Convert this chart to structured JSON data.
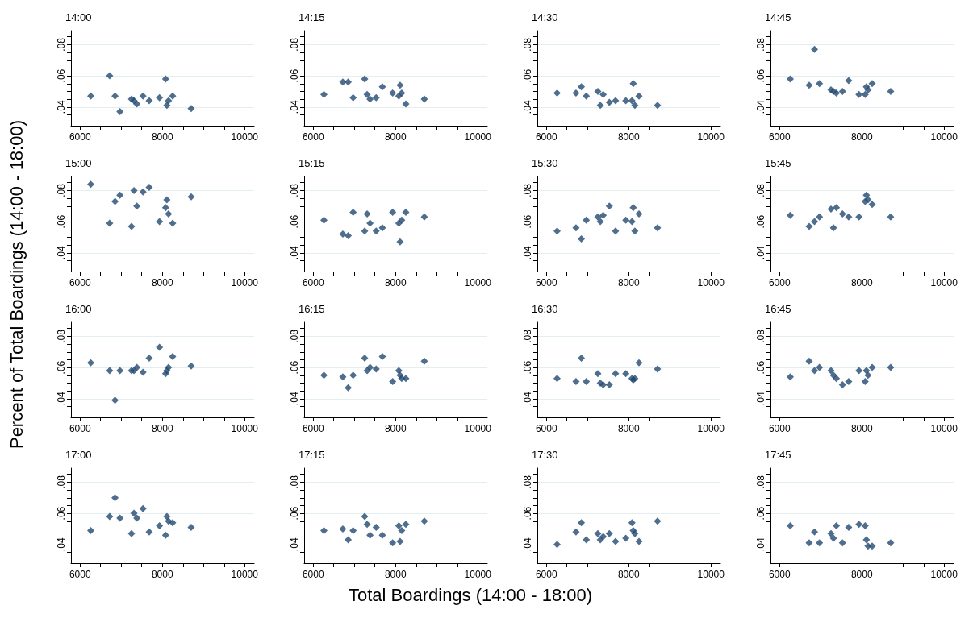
{
  "chart_data": [
    {
      "type": "scatter",
      "title": "14:00",
      "marker": "diamond",
      "grid": "y",
      "xlim": [
        5780,
        10230
      ],
      "ylim": [
        0.028,
        0.089
      ],
      "xticks": [
        6000,
        {
          "value": 6500,
          "label": null
        },
        {
          "value": 7000,
          "label": null
        },
        {
          "value": 7500,
          "label": null
        },
        8000,
        {
          "value": 8500,
          "label": null
        },
        {
          "value": 9000,
          "label": null
        },
        {
          "value": 9500,
          "label": null
        },
        10000
      ],
      "yticks": [
        {
          "value": 0.035,
          "label": null
        },
        {
          "value": 0.04,
          "label": ".04"
        },
        {
          "value": 0.045,
          "label": null
        },
        {
          "value": 0.05,
          "label": null
        },
        {
          "value": 0.055,
          "label": null
        },
        {
          "value": 0.06,
          "label": ".06"
        },
        {
          "value": 0.065,
          "label": null
        },
        {
          "value": 0.07,
          "label": null
        },
        {
          "value": 0.075,
          "label": null
        },
        {
          "value": 0.08,
          "label": ".08"
        },
        {
          "value": 0.085,
          "label": null
        }
      ],
      "x": [
        6260,
        6720,
        6850,
        6970,
        7250,
        7310,
        7380,
        7530,
        7680,
        7930,
        8080,
        8110,
        8150,
        8250,
        8700
      ],
      "series": [
        {
          "color": "#234a72",
          "values": [
            0.047,
            0.06,
            0.047,
            0.037,
            0.045,
            0.044,
            0.042,
            0.047,
            0.044,
            0.046,
            0.058,
            0.041,
            0.044,
            0.047,
            0.039
          ]
        }
      ]
    },
    {
      "type": "scatter",
      "title": "14:15",
      "marker": "diamond",
      "grid": "y",
      "xlim": [
        5780,
        10230
      ],
      "ylim": [
        0.028,
        0.089
      ],
      "xticks": [
        6000,
        {
          "value": 6500,
          "label": null
        },
        {
          "value": 7000,
          "label": null
        },
        {
          "value": 7500,
          "label": null
        },
        8000,
        {
          "value": 8500,
          "label": null
        },
        {
          "value": 9000,
          "label": null
        },
        {
          "value": 9500,
          "label": null
        },
        10000
      ],
      "yticks": [
        {
          "value": 0.035,
          "label": null
        },
        {
          "value": 0.04,
          "label": ".04"
        },
        {
          "value": 0.045,
          "label": null
        },
        {
          "value": 0.05,
          "label": null
        },
        {
          "value": 0.055,
          "label": null
        },
        {
          "value": 0.06,
          "label": ".06"
        },
        {
          "value": 0.065,
          "label": null
        },
        {
          "value": 0.07,
          "label": null
        },
        {
          "value": 0.075,
          "label": null
        },
        {
          "value": 0.08,
          "label": ".08"
        },
        {
          "value": 0.085,
          "label": null
        }
      ],
      "x": [
        6260,
        6720,
        6850,
        6970,
        7250,
        7310,
        7380,
        7530,
        7680,
        7930,
        8080,
        8110,
        8150,
        8250,
        8700
      ],
      "series": [
        {
          "color": "#234a72",
          "values": [
            0.048,
            0.056,
            0.056,
            0.046,
            0.058,
            0.048,
            0.045,
            0.046,
            0.053,
            0.049,
            0.047,
            0.054,
            0.049,
            0.042,
            0.045
          ]
        }
      ]
    },
    {
      "type": "scatter",
      "title": "14:30",
      "marker": "diamond",
      "grid": "y",
      "xlim": [
        5780,
        10230
      ],
      "ylim": [
        0.028,
        0.089
      ],
      "xticks": [
        6000,
        {
          "value": 6500,
          "label": null
        },
        {
          "value": 7000,
          "label": null
        },
        {
          "value": 7500,
          "label": null
        },
        8000,
        {
          "value": 8500,
          "label": null
        },
        {
          "value": 9000,
          "label": null
        },
        {
          "value": 9500,
          "label": null
        },
        10000
      ],
      "yticks": [
        {
          "value": 0.035,
          "label": null
        },
        {
          "value": 0.04,
          "label": ".04"
        },
        {
          "value": 0.045,
          "label": null
        },
        {
          "value": 0.05,
          "label": null
        },
        {
          "value": 0.055,
          "label": null
        },
        {
          "value": 0.06,
          "label": ".06"
        },
        {
          "value": 0.065,
          "label": null
        },
        {
          "value": 0.07,
          "label": null
        },
        {
          "value": 0.075,
          "label": null
        },
        {
          "value": 0.08,
          "label": ".08"
        },
        {
          "value": 0.085,
          "label": null
        }
      ],
      "x": [
        6260,
        6720,
        6850,
        6970,
        7250,
        7310,
        7380,
        7530,
        7680,
        7930,
        8080,
        8110,
        8150,
        8250,
        8700
      ],
      "series": [
        {
          "color": "#234a72",
          "values": [
            0.049,
            0.049,
            0.053,
            0.047,
            0.05,
            0.041,
            0.048,
            0.043,
            0.044,
            0.044,
            0.044,
            0.055,
            0.041,
            0.047,
            0.041
          ]
        }
      ]
    },
    {
      "type": "scatter",
      "title": "14:45",
      "marker": "diamond",
      "grid": "y",
      "xlim": [
        5780,
        10230
      ],
      "ylim": [
        0.028,
        0.089
      ],
      "xticks": [
        6000,
        {
          "value": 6500,
          "label": null
        },
        {
          "value": 7000,
          "label": null
        },
        {
          "value": 7500,
          "label": null
        },
        8000,
        {
          "value": 8500,
          "label": null
        },
        {
          "value": 9000,
          "label": null
        },
        {
          "value": 9500,
          "label": null
        },
        10000
      ],
      "yticks": [
        {
          "value": 0.035,
          "label": null
        },
        {
          "value": 0.04,
          "label": ".04"
        },
        {
          "value": 0.045,
          "label": null
        },
        {
          "value": 0.05,
          "label": null
        },
        {
          "value": 0.055,
          "label": null
        },
        {
          "value": 0.06,
          "label": ".06"
        },
        {
          "value": 0.065,
          "label": null
        },
        {
          "value": 0.07,
          "label": null
        },
        {
          "value": 0.075,
          "label": null
        },
        {
          "value": 0.08,
          "label": ".08"
        },
        {
          "value": 0.085,
          "label": null
        }
      ],
      "x": [
        6260,
        6720,
        6850,
        6970,
        7250,
        7310,
        7380,
        7530,
        7680,
        7930,
        8080,
        8110,
        8150,
        8250,
        8700
      ],
      "series": [
        {
          "color": "#234a72",
          "values": [
            0.058,
            0.054,
            0.077,
            0.055,
            0.051,
            0.05,
            0.049,
            0.05,
            0.057,
            0.048,
            0.048,
            0.053,
            0.051,
            0.055,
            0.05
          ]
        }
      ]
    },
    {
      "type": "scatter",
      "title": "15:00",
      "ylabel": "Percent of Total Boardings (14:00 - 18:00)",
      "marker": "diamond",
      "grid": "y",
      "xlim": [
        5780,
        10230
      ],
      "ylim": [
        0.028,
        0.089
      ],
      "xticks": [
        6000,
        {
          "value": 6500,
          "label": null
        },
        {
          "value": 7000,
          "label": null
        },
        {
          "value": 7500,
          "label": null
        },
        8000,
        {
          "value": 8500,
          "label": null
        },
        {
          "value": 9000,
          "label": null
        },
        {
          "value": 9500,
          "label": null
        },
        10000
      ],
      "yticks": [
        {
          "value": 0.035,
          "label": null
        },
        {
          "value": 0.04,
          "label": ".04"
        },
        {
          "value": 0.045,
          "label": null
        },
        {
          "value": 0.05,
          "label": null
        },
        {
          "value": 0.055,
          "label": null
        },
        {
          "value": 0.06,
          "label": ".06"
        },
        {
          "value": 0.065,
          "label": null
        },
        {
          "value": 0.07,
          "label": null
        },
        {
          "value": 0.075,
          "label": null
        },
        {
          "value": 0.08,
          "label": ".08"
        },
        {
          "value": 0.085,
          "label": null
        }
      ],
      "x": [
        6260,
        6720,
        6850,
        6970,
        7250,
        7310,
        7380,
        7530,
        7680,
        7930,
        8080,
        8110,
        8150,
        8250,
        8700
      ],
      "series": [
        {
          "color": "#234a72",
          "values": [
            0.084,
            0.059,
            0.073,
            0.077,
            0.057,
            0.08,
            0.07,
            0.079,
            0.082,
            0.06,
            0.069,
            0.074,
            0.065,
            0.059,
            0.076
          ]
        }
      ]
    },
    {
      "type": "scatter",
      "title": "15:15",
      "marker": "diamond",
      "grid": "y",
      "xlim": [
        5780,
        10230
      ],
      "ylim": [
        0.028,
        0.089
      ],
      "xticks": [
        6000,
        {
          "value": 6500,
          "label": null
        },
        {
          "value": 7000,
          "label": null
        },
        {
          "value": 7500,
          "label": null
        },
        8000,
        {
          "value": 8500,
          "label": null
        },
        {
          "value": 9000,
          "label": null
        },
        {
          "value": 9500,
          "label": null
        },
        10000
      ],
      "yticks": [
        {
          "value": 0.035,
          "label": null
        },
        {
          "value": 0.04,
          "label": ".04"
        },
        {
          "value": 0.045,
          "label": null
        },
        {
          "value": 0.05,
          "label": null
        },
        {
          "value": 0.055,
          "label": null
        },
        {
          "value": 0.06,
          "label": ".06"
        },
        {
          "value": 0.065,
          "label": null
        },
        {
          "value": 0.07,
          "label": null
        },
        {
          "value": 0.075,
          "label": null
        },
        {
          "value": 0.08,
          "label": ".08"
        },
        {
          "value": 0.085,
          "label": null
        }
      ],
      "x": [
        6260,
        6720,
        6850,
        6970,
        7250,
        7310,
        7380,
        7530,
        7680,
        7930,
        8080,
        8110,
        8150,
        8250,
        8700
      ],
      "series": [
        {
          "color": "#234a72",
          "values": [
            0.061,
            0.052,
            0.051,
            0.066,
            0.054,
            0.065,
            0.059,
            0.054,
            0.056,
            0.066,
            0.059,
            0.047,
            0.061,
            0.066,
            0.063
          ]
        }
      ]
    },
    {
      "type": "scatter",
      "title": "15:30",
      "marker": "diamond",
      "grid": "y",
      "xlim": [
        5780,
        10230
      ],
      "ylim": [
        0.028,
        0.089
      ],
      "xticks": [
        6000,
        {
          "value": 6500,
          "label": null
        },
        {
          "value": 7000,
          "label": null
        },
        {
          "value": 7500,
          "label": null
        },
        8000,
        {
          "value": 8500,
          "label": null
        },
        {
          "value": 9000,
          "label": null
        },
        {
          "value": 9500,
          "label": null
        },
        10000
      ],
      "yticks": [
        {
          "value": 0.035,
          "label": null
        },
        {
          "value": 0.04,
          "label": ".04"
        },
        {
          "value": 0.045,
          "label": null
        },
        {
          "value": 0.05,
          "label": null
        },
        {
          "value": 0.055,
          "label": null
        },
        {
          "value": 0.06,
          "label": ".06"
        },
        {
          "value": 0.065,
          "label": null
        },
        {
          "value": 0.07,
          "label": null
        },
        {
          "value": 0.075,
          "label": null
        },
        {
          "value": 0.08,
          "label": ".08"
        },
        {
          "value": 0.085,
          "label": null
        }
      ],
      "x": [
        6260,
        6720,
        6850,
        6970,
        7250,
        7310,
        7380,
        7530,
        7680,
        7930,
        8080,
        8110,
        8150,
        8250,
        8700
      ],
      "series": [
        {
          "color": "#234a72",
          "values": [
            0.054,
            0.056,
            0.049,
            0.061,
            0.063,
            0.06,
            0.064,
            0.07,
            0.054,
            0.061,
            0.06,
            0.069,
            0.054,
            0.065,
            0.056
          ]
        }
      ]
    },
    {
      "type": "scatter",
      "title": "15:45",
      "marker": "diamond",
      "grid": "y",
      "xlim": [
        5780,
        10230
      ],
      "ylim": [
        0.028,
        0.089
      ],
      "xticks": [
        6000,
        {
          "value": 6500,
          "label": null
        },
        {
          "value": 7000,
          "label": null
        },
        {
          "value": 7500,
          "label": null
        },
        8000,
        {
          "value": 8500,
          "label": null
        },
        {
          "value": 9000,
          "label": null
        },
        {
          "value": 9500,
          "label": null
        },
        10000
      ],
      "yticks": [
        {
          "value": 0.035,
          "label": null
        },
        {
          "value": 0.04,
          "label": ".04"
        },
        {
          "value": 0.045,
          "label": null
        },
        {
          "value": 0.05,
          "label": null
        },
        {
          "value": 0.055,
          "label": null
        },
        {
          "value": 0.06,
          "label": ".06"
        },
        {
          "value": 0.065,
          "label": null
        },
        {
          "value": 0.07,
          "label": null
        },
        {
          "value": 0.075,
          "label": null
        },
        {
          "value": 0.08,
          "label": ".08"
        },
        {
          "value": 0.085,
          "label": null
        }
      ],
      "x": [
        6260,
        6720,
        6850,
        6970,
        7250,
        7310,
        7380,
        7530,
        7680,
        7930,
        8080,
        8110,
        8150,
        8250,
        8700
      ],
      "series": [
        {
          "color": "#234a72",
          "values": [
            0.064,
            0.057,
            0.06,
            0.063,
            0.068,
            0.056,
            0.069,
            0.065,
            0.063,
            0.063,
            0.073,
            0.077,
            0.074,
            0.071,
            0.063
          ]
        }
      ]
    },
    {
      "type": "scatter",
      "title": "16:00",
      "marker": "diamond",
      "grid": "y",
      "xlim": [
        5780,
        10230
      ],
      "ylim": [
        0.028,
        0.089
      ],
      "xticks": [
        6000,
        {
          "value": 6500,
          "label": null
        },
        {
          "value": 7000,
          "label": null
        },
        {
          "value": 7500,
          "label": null
        },
        8000,
        {
          "value": 8500,
          "label": null
        },
        {
          "value": 9000,
          "label": null
        },
        {
          "value": 9500,
          "label": null
        },
        10000
      ],
      "yticks": [
        {
          "value": 0.035,
          "label": null
        },
        {
          "value": 0.04,
          "label": ".04"
        },
        {
          "value": 0.045,
          "label": null
        },
        {
          "value": 0.05,
          "label": null
        },
        {
          "value": 0.055,
          "label": null
        },
        {
          "value": 0.06,
          "label": ".06"
        },
        {
          "value": 0.065,
          "label": null
        },
        {
          "value": 0.07,
          "label": null
        },
        {
          "value": 0.075,
          "label": null
        },
        {
          "value": 0.08,
          "label": ".08"
        },
        {
          "value": 0.085,
          "label": null
        }
      ],
      "x": [
        6260,
        6720,
        6850,
        6970,
        7250,
        7310,
        7380,
        7530,
        7680,
        7930,
        8080,
        8110,
        8150,
        8250,
        8700
      ],
      "series": [
        {
          "color": "#234a72",
          "values": [
            0.063,
            0.058,
            0.039,
            0.058,
            0.058,
            0.058,
            0.06,
            0.057,
            0.066,
            0.073,
            0.056,
            0.058,
            0.06,
            0.067,
            0.061
          ]
        }
      ]
    },
    {
      "type": "scatter",
      "title": "16:15",
      "marker": "diamond",
      "grid": "y",
      "xlim": [
        5780,
        10230
      ],
      "ylim": [
        0.028,
        0.089
      ],
      "xticks": [
        6000,
        {
          "value": 6500,
          "label": null
        },
        {
          "value": 7000,
          "label": null
        },
        {
          "value": 7500,
          "label": null
        },
        8000,
        {
          "value": 8500,
          "label": null
        },
        {
          "value": 9000,
          "label": null
        },
        {
          "value": 9500,
          "label": null
        },
        10000
      ],
      "yticks": [
        {
          "value": 0.035,
          "label": null
        },
        {
          "value": 0.04,
          "label": ".04"
        },
        {
          "value": 0.045,
          "label": null
        },
        {
          "value": 0.05,
          "label": null
        },
        {
          "value": 0.055,
          "label": null
        },
        {
          "value": 0.06,
          "label": ".06"
        },
        {
          "value": 0.065,
          "label": null
        },
        {
          "value": 0.07,
          "label": null
        },
        {
          "value": 0.075,
          "label": null
        },
        {
          "value": 0.08,
          "label": ".08"
        },
        {
          "value": 0.085,
          "label": null
        }
      ],
      "x": [
        6260,
        6720,
        6850,
        6970,
        7250,
        7310,
        7380,
        7530,
        7680,
        7930,
        8080,
        8110,
        8150,
        8250,
        8700
      ],
      "series": [
        {
          "color": "#234a72",
          "values": [
            0.055,
            0.054,
            0.047,
            0.055,
            0.066,
            0.058,
            0.06,
            0.059,
            0.067,
            0.051,
            0.058,
            0.055,
            0.053,
            0.053,
            0.064
          ]
        }
      ]
    },
    {
      "type": "scatter",
      "title": "16:30",
      "marker": "diamond",
      "grid": "y",
      "xlim": [
        5780,
        10230
      ],
      "ylim": [
        0.028,
        0.089
      ],
      "xticks": [
        6000,
        {
          "value": 6500,
          "label": null
        },
        {
          "value": 7000,
          "label": null
        },
        {
          "value": 7500,
          "label": null
        },
        8000,
        {
          "value": 8500,
          "label": null
        },
        {
          "value": 9000,
          "label": null
        },
        {
          "value": 9500,
          "label": null
        },
        10000
      ],
      "yticks": [
        {
          "value": 0.035,
          "label": null
        },
        {
          "value": 0.04,
          "label": ".04"
        },
        {
          "value": 0.045,
          "label": null
        },
        {
          "value": 0.05,
          "label": null
        },
        {
          "value": 0.055,
          "label": null
        },
        {
          "value": 0.06,
          "label": ".06"
        },
        {
          "value": 0.065,
          "label": null
        },
        {
          "value": 0.07,
          "label": null
        },
        {
          "value": 0.075,
          "label": null
        },
        {
          "value": 0.08,
          "label": ".08"
        },
        {
          "value": 0.085,
          "label": null
        }
      ],
      "x": [
        6260,
        6720,
        6850,
        6970,
        7250,
        7310,
        7380,
        7530,
        7680,
        7930,
        8080,
        8110,
        8150,
        8250,
        8700
      ],
      "series": [
        {
          "color": "#234a72",
          "values": [
            0.053,
            0.051,
            0.066,
            0.051,
            0.056,
            0.05,
            0.049,
            0.049,
            0.056,
            0.056,
            0.053,
            0.052,
            0.053,
            0.063,
            0.059
          ]
        }
      ]
    },
    {
      "type": "scatter",
      "title": "16:45",
      "marker": "diamond",
      "grid": "y",
      "xlim": [
        5780,
        10230
      ],
      "ylim": [
        0.028,
        0.089
      ],
      "xticks": [
        6000,
        {
          "value": 6500,
          "label": null
        },
        {
          "value": 7000,
          "label": null
        },
        {
          "value": 7500,
          "label": null
        },
        8000,
        {
          "value": 8500,
          "label": null
        },
        {
          "value": 9000,
          "label": null
        },
        {
          "value": 9500,
          "label": null
        },
        10000
      ],
      "yticks": [
        {
          "value": 0.035,
          "label": null
        },
        {
          "value": 0.04,
          "label": ".04"
        },
        {
          "value": 0.045,
          "label": null
        },
        {
          "value": 0.05,
          "label": null
        },
        {
          "value": 0.055,
          "label": null
        },
        {
          "value": 0.06,
          "label": ".06"
        },
        {
          "value": 0.065,
          "label": null
        },
        {
          "value": 0.07,
          "label": null
        },
        {
          "value": 0.075,
          "label": null
        },
        {
          "value": 0.08,
          "label": ".08"
        },
        {
          "value": 0.085,
          "label": null
        }
      ],
      "x": [
        6260,
        6720,
        6850,
        6970,
        7250,
        7310,
        7380,
        7530,
        7680,
        7930,
        8080,
        8110,
        8150,
        8250,
        8700
      ],
      "series": [
        {
          "color": "#234a72",
          "values": [
            0.054,
            0.064,
            0.058,
            0.06,
            0.058,
            0.055,
            0.053,
            0.049,
            0.051,
            0.058,
            0.051,
            0.058,
            0.055,
            0.06,
            0.06
          ]
        }
      ]
    },
    {
      "type": "scatter",
      "title": "17:00",
      "marker": "diamond",
      "grid": "y",
      "xlim": [
        5780,
        10230
      ],
      "ylim": [
        0.028,
        0.089
      ],
      "xticks": [
        6000,
        {
          "value": 6500,
          "label": null
        },
        {
          "value": 7000,
          "label": null
        },
        {
          "value": 7500,
          "label": null
        },
        8000,
        {
          "value": 8500,
          "label": null
        },
        {
          "value": 9000,
          "label": null
        },
        {
          "value": 9500,
          "label": null
        },
        10000
      ],
      "yticks": [
        {
          "value": 0.035,
          "label": null
        },
        {
          "value": 0.04,
          "label": ".04"
        },
        {
          "value": 0.045,
          "label": null
        },
        {
          "value": 0.05,
          "label": null
        },
        {
          "value": 0.055,
          "label": null
        },
        {
          "value": 0.06,
          "label": ".06"
        },
        {
          "value": 0.065,
          "label": null
        },
        {
          "value": 0.07,
          "label": null
        },
        {
          "value": 0.075,
          "label": null
        },
        {
          "value": 0.08,
          "label": ".08"
        },
        {
          "value": 0.085,
          "label": null
        }
      ],
      "x": [
        6260,
        6720,
        6850,
        6970,
        7250,
        7310,
        7380,
        7530,
        7680,
        7930,
        8080,
        8110,
        8150,
        8250,
        8700
      ],
      "series": [
        {
          "color": "#234a72",
          "values": [
            0.049,
            0.058,
            0.07,
            0.057,
            0.047,
            0.06,
            0.057,
            0.063,
            0.048,
            0.052,
            0.046,
            0.058,
            0.055,
            0.054,
            0.051
          ]
        }
      ]
    },
    {
      "type": "scatter",
      "title": "17:15",
      "xlabel": "Total Boardings (14:00 - 18:00)",
      "marker": "diamond",
      "grid": "y",
      "xlim": [
        5780,
        10230
      ],
      "ylim": [
        0.028,
        0.089
      ],
      "xticks": [
        6000,
        {
          "value": 6500,
          "label": null
        },
        {
          "value": 7000,
          "label": null
        },
        {
          "value": 7500,
          "label": null
        },
        8000,
        {
          "value": 8500,
          "label": null
        },
        {
          "value": 9000,
          "label": null
        },
        {
          "value": 9500,
          "label": null
        },
        10000
      ],
      "yticks": [
        {
          "value": 0.035,
          "label": null
        },
        {
          "value": 0.04,
          "label": ".04"
        },
        {
          "value": 0.045,
          "label": null
        },
        {
          "value": 0.05,
          "label": null
        },
        {
          "value": 0.055,
          "label": null
        },
        {
          "value": 0.06,
          "label": ".06"
        },
        {
          "value": 0.065,
          "label": null
        },
        {
          "value": 0.07,
          "label": null
        },
        {
          "value": 0.075,
          "label": null
        },
        {
          "value": 0.08,
          "label": ".08"
        },
        {
          "value": 0.085,
          "label": null
        }
      ],
      "x": [
        6260,
        6720,
        6850,
        6970,
        7250,
        7310,
        7380,
        7530,
        7680,
        7930,
        8080,
        8110,
        8150,
        8250,
        8700
      ],
      "series": [
        {
          "color": "#234a72",
          "values": [
            0.049,
            0.05,
            0.043,
            0.049,
            0.058,
            0.053,
            0.046,
            0.051,
            0.046,
            0.041,
            0.052,
            0.042,
            0.049,
            0.053,
            0.055
          ]
        }
      ]
    },
    {
      "type": "scatter",
      "title": "17:30",
      "marker": "diamond",
      "grid": "y",
      "xlim": [
        5780,
        10230
      ],
      "ylim": [
        0.028,
        0.089
      ],
      "xticks": [
        6000,
        {
          "value": 6500,
          "label": null
        },
        {
          "value": 7000,
          "label": null
        },
        {
          "value": 7500,
          "label": null
        },
        8000,
        {
          "value": 8500,
          "label": null
        },
        {
          "value": 9000,
          "label": null
        },
        {
          "value": 9500,
          "label": null
        },
        10000
      ],
      "yticks": [
        {
          "value": 0.035,
          "label": null
        },
        {
          "value": 0.04,
          "label": ".04"
        },
        {
          "value": 0.045,
          "label": null
        },
        {
          "value": 0.05,
          "label": null
        },
        {
          "value": 0.055,
          "label": null
        },
        {
          "value": 0.06,
          "label": ".06"
        },
        {
          "value": 0.065,
          "label": null
        },
        {
          "value": 0.07,
          "label": null
        },
        {
          "value": 0.075,
          "label": null
        },
        {
          "value": 0.08,
          "label": ".08"
        },
        {
          "value": 0.085,
          "label": null
        }
      ],
      "x": [
        6260,
        6720,
        6850,
        6970,
        7250,
        7310,
        7380,
        7530,
        7680,
        7930,
        8080,
        8110,
        8150,
        8250,
        8700
      ],
      "series": [
        {
          "color": "#234a72",
          "values": [
            0.04,
            0.048,
            0.054,
            0.043,
            0.047,
            0.043,
            0.045,
            0.047,
            0.042,
            0.044,
            0.054,
            0.049,
            0.047,
            0.042,
            0.055
          ]
        }
      ]
    },
    {
      "type": "scatter",
      "title": "17:45",
      "marker": "diamond",
      "grid": "y",
      "xlim": [
        5780,
        10230
      ],
      "ylim": [
        0.028,
        0.089
      ],
      "xticks": [
        6000,
        {
          "value": 6500,
          "label": null
        },
        {
          "value": 7000,
          "label": null
        },
        {
          "value": 7500,
          "label": null
        },
        8000,
        {
          "value": 8500,
          "label": null
        },
        {
          "value": 9000,
          "label": null
        },
        {
          "value": 9500,
          "label": null
        },
        10000
      ],
      "yticks": [
        {
          "value": 0.035,
          "label": null
        },
        {
          "value": 0.04,
          "label": ".04"
        },
        {
          "value": 0.045,
          "label": null
        },
        {
          "value": 0.05,
          "label": null
        },
        {
          "value": 0.055,
          "label": null
        },
        {
          "value": 0.06,
          "label": ".06"
        },
        {
          "value": 0.065,
          "label": null
        },
        {
          "value": 0.07,
          "label": null
        },
        {
          "value": 0.075,
          "label": null
        },
        {
          "value": 0.08,
          "label": ".08"
        },
        {
          "value": 0.085,
          "label": null
        }
      ],
      "x": [
        6260,
        6720,
        6850,
        6970,
        7250,
        7310,
        7380,
        7530,
        7680,
        7930,
        8080,
        8110,
        8150,
        8250,
        8700
      ],
      "series": [
        {
          "color": "#234a72",
          "values": [
            0.052,
            0.041,
            0.048,
            0.041,
            0.047,
            0.044,
            0.052,
            0.041,
            0.051,
            0.053,
            0.052,
            0.043,
            0.039,
            0.039,
            0.041
          ]
        }
      ]
    }
  ]
}
